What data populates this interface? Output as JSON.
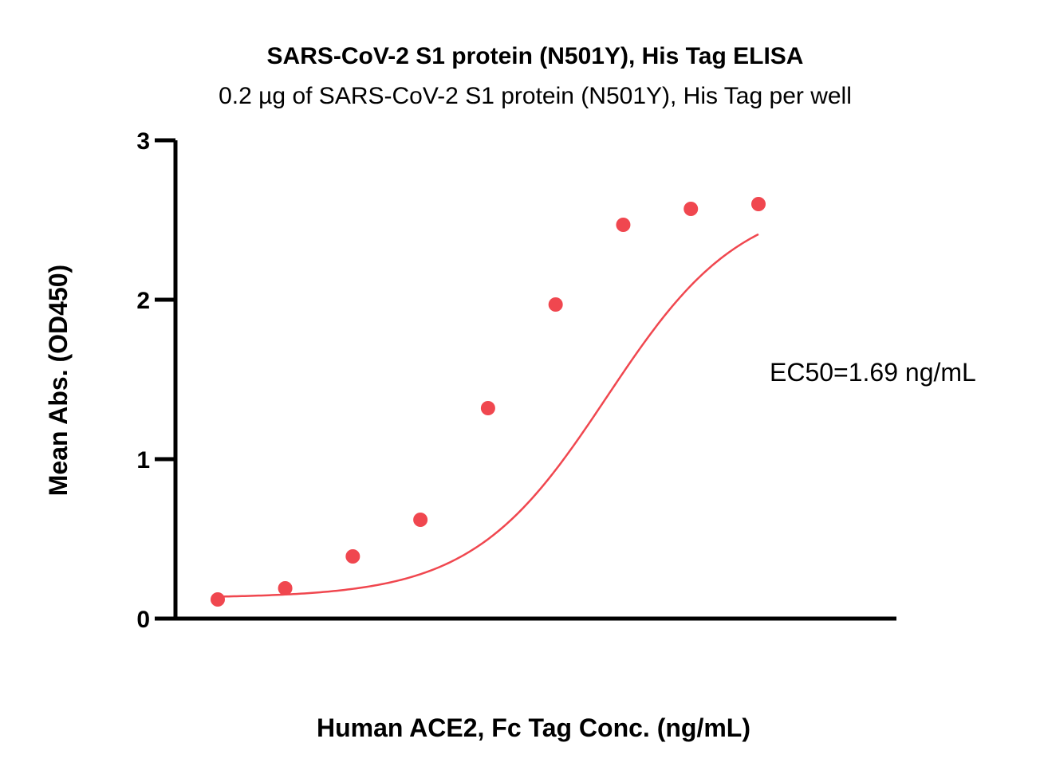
{
  "chart_data": {
    "type": "scatter",
    "title": "SARS-CoV-2 S1 protein (N501Y), His Tag ELISA",
    "subtitle": "0.2 µg of SARS-CoV-2 S1 protein (N501Y), His Tag per well",
    "xlabel": "Human ACE2, Fc Tag Conc. (ng/mL)",
    "ylabel": "Mean Abs. (OD450)",
    "x_scale": "log",
    "x_tick_labels_visible": false,
    "ylim": [
      0,
      3
    ],
    "yticks": [
      "0",
      "1",
      "2",
      "3"
    ],
    "grid": false,
    "legend": "none",
    "color": "#f0474f",
    "annotation": "EC50=1.69 ng/mL",
    "series": [
      {
        "x": [
          0.0313,
          0.0625,
          0.125,
          0.25,
          0.5,
          1,
          2,
          4,
          8
        ],
        "y": [
          0.12,
          0.19,
          0.39,
          0.62,
          1.32,
          1.97,
          2.47,
          2.57,
          2.6
        ]
      }
    ],
    "fit_curve": {
      "model": "4PL",
      "bottom": 0.13,
      "top": 2.65,
      "ec50": 1.69,
      "hill": 1.45
    }
  }
}
